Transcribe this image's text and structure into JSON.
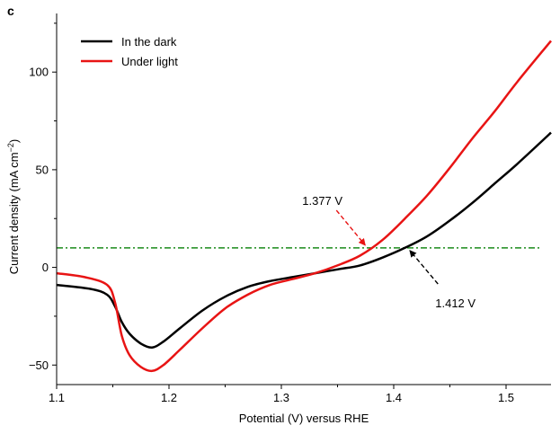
{
  "panel_label": "c",
  "chart_data": {
    "type": "line",
    "xlabel": "Potential (V) versus RHE",
    "ylabel_main": "Current density (mA cm",
    "ylabel_sup": "−2",
    "ylabel_close": ")",
    "xlim": [
      1.1,
      1.54
    ],
    "ylim": [
      -60,
      130
    ],
    "xticks": [
      1.1,
      1.2,
      1.3,
      1.4,
      1.5
    ],
    "xtick_labels": [
      "1.1",
      "1.2",
      "1.3",
      "1.4",
      "1.5"
    ],
    "yticks": [
      -50,
      0,
      50,
      100
    ],
    "ytick_labels": [
      "−50",
      "0",
      "50",
      "100"
    ],
    "reference_line": {
      "y": 10,
      "color": "#1a8a1a"
    },
    "series": [
      {
        "name": "In the dark",
        "color": "#000000",
        "x": [
          1.1,
          1.13,
          1.145,
          1.152,
          1.158,
          1.165,
          1.175,
          1.185,
          1.195,
          1.21,
          1.23,
          1.25,
          1.27,
          1.29,
          1.31,
          1.33,
          1.35,
          1.37,
          1.39,
          1.41,
          1.43,
          1.45,
          1.47,
          1.49,
          1.51,
          1.54
        ],
        "y": [
          -9,
          -11,
          -14,
          -20,
          -28,
          -34,
          -39,
          -41,
          -38,
          -31,
          -22,
          -15,
          -10,
          -7,
          -5,
          -3,
          -1,
          1,
          5,
          10,
          16,
          24,
          33,
          43,
          53,
          69
        ]
      },
      {
        "name": "Under light",
        "color": "#e81414",
        "x": [
          1.1,
          1.125,
          1.145,
          1.152,
          1.158,
          1.165,
          1.175,
          1.185,
          1.195,
          1.21,
          1.23,
          1.25,
          1.27,
          1.29,
          1.31,
          1.33,
          1.35,
          1.37,
          1.39,
          1.41,
          1.43,
          1.45,
          1.47,
          1.49,
          1.51,
          1.54
        ],
        "y": [
          -3,
          -5,
          -9,
          -18,
          -35,
          -45,
          -51,
          -53,
          -50,
          -42,
          -31,
          -21,
          -14,
          -9,
          -6,
          -3,
          1,
          6,
          14,
          25,
          37,
          51,
          66,
          80,
          95,
          116
        ]
      }
    ],
    "legend": {
      "position": "top-left"
    },
    "annotations": [
      {
        "label": "1.377 V",
        "color": "#e81414",
        "x": 1.377,
        "y": 10,
        "text_x": 1.325,
        "text_y": 32
      },
      {
        "label": "1.412 V",
        "color": "#000000",
        "x": 1.412,
        "y": 10,
        "text_x": 1.425,
        "text_y": -14
      }
    ]
  }
}
